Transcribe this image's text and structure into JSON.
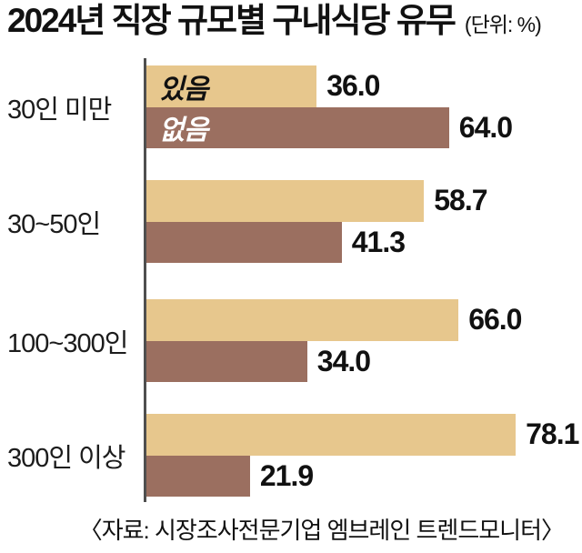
{
  "title": "2024년 직장 규모별 구내식당 유무",
  "unit": "(단위: %)",
  "source": "〈자료: 시장조사전문기업 엠브레인 트렌드모니터〉",
  "colors": {
    "yes_bar": "#e7c78d",
    "no_bar": "#9b6f60",
    "yes_label_text": "#111111",
    "no_label_text": "#ffffff",
    "axis": "#4f4f4f",
    "text": "#111111"
  },
  "chart_data": {
    "type": "bar",
    "orientation": "horizontal",
    "title": "2024년 직장 규모별 구내식당 유무",
    "unit": "%",
    "categories": [
      "30인 미만",
      "30~50인",
      "100~300인",
      "300인 이상"
    ],
    "series": [
      {
        "name": "있음",
        "values": [
          36.0,
          58.7,
          66.0,
          78.1
        ]
      },
      {
        "name": "없음",
        "values": [
          64.0,
          41.3,
          34.0,
          21.9
        ]
      }
    ],
    "xlim": [
      0,
      92
    ],
    "grid": false,
    "legend_position": "inside-first-bars",
    "value_label_format": "0.0",
    "source": "〈자료: 시장조사전문기업 엠브레인 트렌드모니터〉"
  }
}
